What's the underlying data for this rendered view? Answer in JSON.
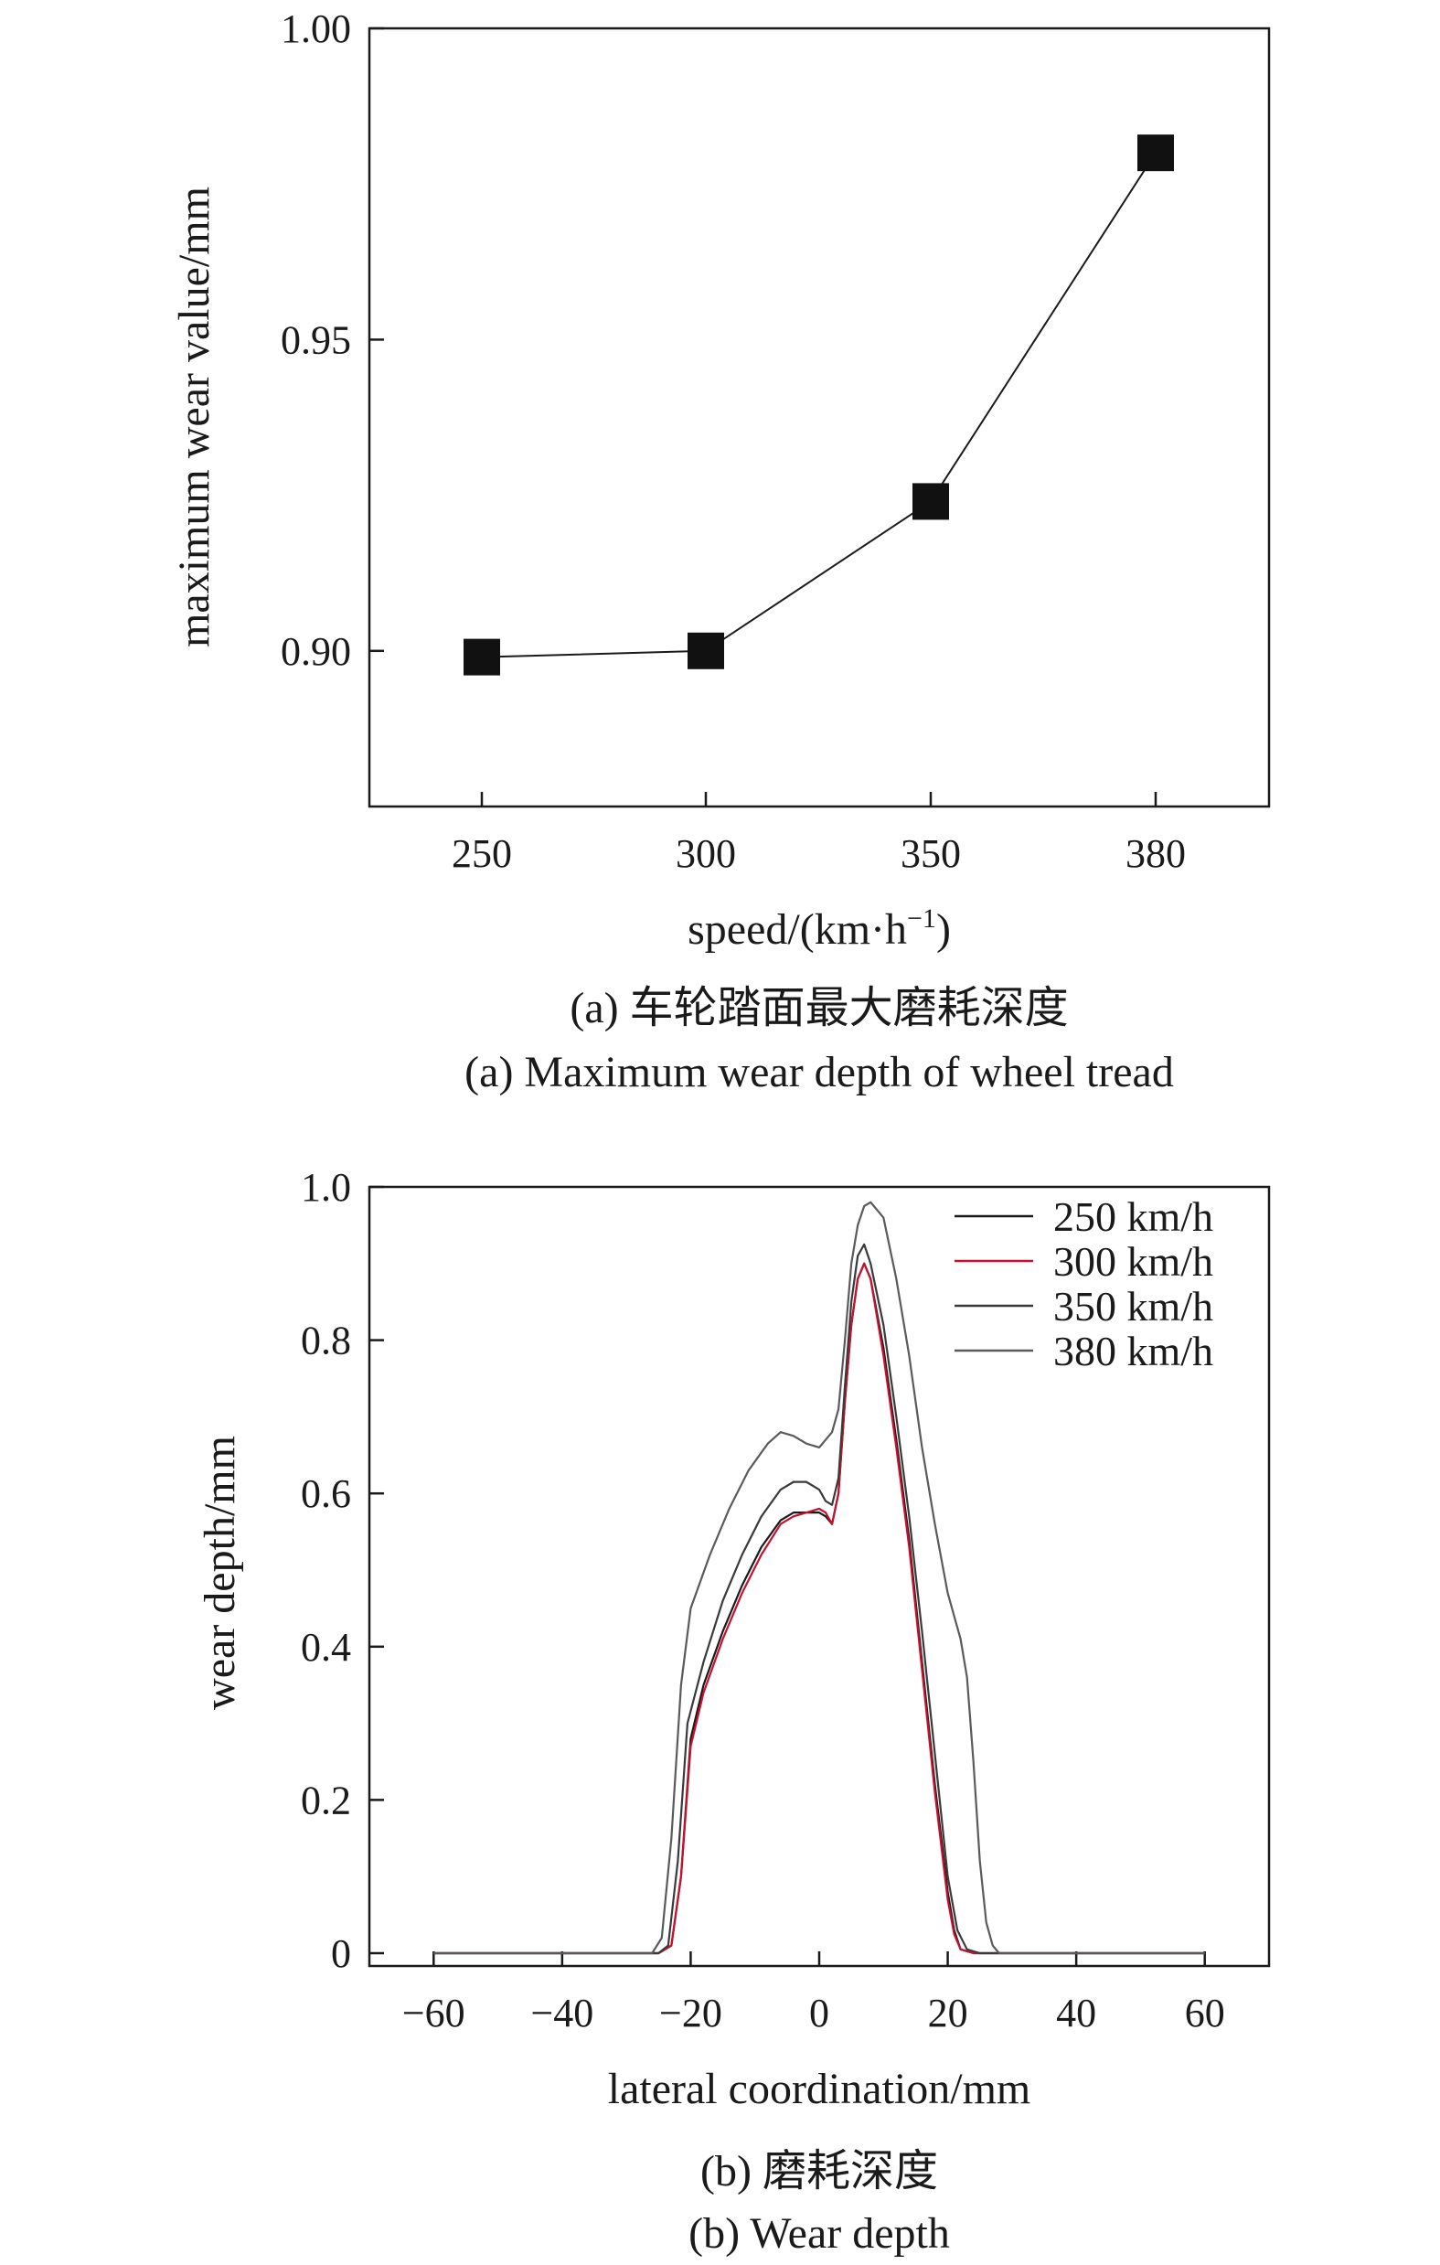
{
  "colors": {
    "series_250": "#1a1a1a",
    "series_300": "#c8102e",
    "series_350": "#3a3a3a",
    "series_380": "#5a5a5a",
    "marker": "#111111",
    "axis": "#1a1a1a"
  },
  "captions": {
    "a_cn": "(a) 车轮踏面最大磨耗深度",
    "a_en": "(a) Maximum wear depth of wheel tread",
    "b_cn": "(b) 磨耗深度",
    "b_en": "(b) Wear depth"
  },
  "chart_data": [
    {
      "type": "line",
      "xlabel": "speed/(km·h",
      "xlabel_sup": "−1",
      "xlabel_close": ")",
      "ylabel": "maximum wear value/mm",
      "categories": [
        "250",
        "300",
        "350",
        "380"
      ],
      "values": [
        0.899,
        0.9,
        0.924,
        0.98
      ],
      "ylim": [
        0.875,
        1.0
      ],
      "yticks": [
        "0.90",
        "0.95",
        "1.00"
      ],
      "ytick_values": [
        0.9,
        0.95,
        1.0
      ],
      "marker": "square",
      "grid": false
    },
    {
      "type": "line",
      "xlabel": "lateral coordination/mm",
      "ylabel": "wear depth/mm",
      "xlim": [
        -70,
        70
      ],
      "ylim": [
        0,
        1.0
      ],
      "xticks": [
        "−60",
        "−40",
        "−20",
        "0",
        "20",
        "40",
        "60"
      ],
      "xtick_values": [
        -60,
        -40,
        -20,
        0,
        20,
        40,
        60
      ],
      "yticks": [
        "0",
        "0.2",
        "0.4",
        "0.6",
        "0.8",
        "1.0"
      ],
      "ytick_values": [
        0,
        0.2,
        0.4,
        0.6,
        0.8,
        1.0
      ],
      "legend_position": "top-right",
      "grid": false,
      "series": [
        {
          "name": "250 km/h",
          "color_key": "series_250",
          "x": [
            -60,
            -25,
            -23,
            -21.5,
            -20,
            -18,
            -15,
            -12,
            -9,
            -6,
            -4,
            -2,
            0,
            1,
            2,
            3,
            4,
            5,
            6,
            7,
            8,
            10,
            12,
            14,
            16,
            18,
            20,
            21,
            22,
            24,
            60
          ],
          "y": [
            0,
            0,
            0.01,
            0.1,
            0.28,
            0.35,
            0.42,
            0.48,
            0.53,
            0.565,
            0.575,
            0.575,
            0.575,
            0.57,
            0.56,
            0.6,
            0.72,
            0.82,
            0.88,
            0.9,
            0.88,
            0.79,
            0.67,
            0.54,
            0.38,
            0.22,
            0.08,
            0.03,
            0.005,
            0,
            0
          ]
        },
        {
          "name": "300 km/h",
          "color_key": "series_300",
          "x": [
            -60,
            -25,
            -23,
            -21.5,
            -20,
            -18,
            -15,
            -12,
            -9,
            -6,
            -4,
            -2,
            0,
            1,
            2,
            3,
            4,
            5,
            6,
            7,
            8,
            10,
            12,
            14,
            16,
            18,
            20,
            21,
            22,
            24,
            60
          ],
          "y": [
            0,
            0,
            0.01,
            0.1,
            0.27,
            0.34,
            0.41,
            0.47,
            0.52,
            0.56,
            0.57,
            0.575,
            0.58,
            0.575,
            0.56,
            0.6,
            0.72,
            0.82,
            0.88,
            0.9,
            0.88,
            0.78,
            0.66,
            0.53,
            0.37,
            0.21,
            0.07,
            0.025,
            0.005,
            0,
            0
          ]
        },
        {
          "name": "350 km/h",
          "color_key": "series_350",
          "x": [
            -60,
            -25,
            -23.5,
            -22,
            -20.5,
            -18,
            -15,
            -12,
            -9,
            -6,
            -4,
            -2,
            0,
            1,
            2,
            3,
            4,
            5,
            6,
            7,
            8,
            10,
            12,
            14,
            16,
            18,
            20,
            21.5,
            23,
            25,
            60
          ],
          "y": [
            0,
            0,
            0.01,
            0.12,
            0.3,
            0.38,
            0.46,
            0.52,
            0.57,
            0.605,
            0.615,
            0.615,
            0.605,
            0.59,
            0.585,
            0.62,
            0.74,
            0.85,
            0.91,
            0.925,
            0.9,
            0.82,
            0.7,
            0.57,
            0.42,
            0.26,
            0.1,
            0.03,
            0.005,
            0,
            0
          ]
        },
        {
          "name": "380 km/h",
          "color_key": "series_380",
          "x": [
            -60,
            -26,
            -24.5,
            -23,
            -21.5,
            -20,
            -17,
            -14,
            -11,
            -8,
            -6,
            -4,
            -2,
            0,
            2,
            3,
            4,
            5,
            6,
            7,
            8,
            10,
            12,
            14,
            16,
            18,
            20,
            22,
            23,
            24,
            25,
            26,
            27,
            28,
            60
          ],
          "y": [
            0,
            0,
            0.02,
            0.15,
            0.35,
            0.45,
            0.52,
            0.58,
            0.63,
            0.665,
            0.68,
            0.675,
            0.665,
            0.66,
            0.68,
            0.71,
            0.8,
            0.9,
            0.95,
            0.975,
            0.98,
            0.96,
            0.88,
            0.78,
            0.66,
            0.56,
            0.47,
            0.41,
            0.36,
            0.25,
            0.12,
            0.04,
            0.01,
            0,
            0
          ]
        }
      ]
    }
  ]
}
